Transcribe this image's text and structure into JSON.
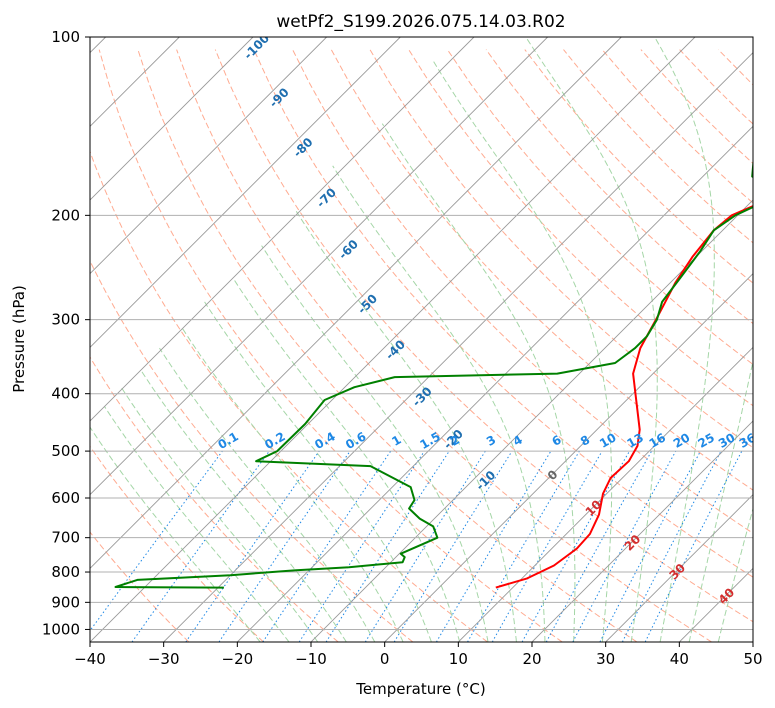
{
  "chart_data": {
    "type": "line",
    "title": "wetPf2_S199.2026.075.14.03.R02",
    "xlabel": "Temperature (°C)",
    "ylabel": "Pressure (hPa)",
    "xlim": [
      -40,
      50
    ],
    "ylim": [
      1050,
      100
    ],
    "x_ticks": [
      -40,
      -30,
      -20,
      -10,
      0,
      10,
      20,
      30,
      40,
      50
    ],
    "x_tick_labels": [
      "−40",
      "−30",
      "−20",
      "−10",
      "0",
      "10",
      "20",
      "30",
      "40",
      "50"
    ],
    "y_ticks": [
      100,
      200,
      300,
      400,
      500,
      600,
      700,
      800,
      900,
      1000
    ],
    "y_tick_labels": [
      "100",
      "200",
      "300",
      "400",
      "500",
      "600",
      "700",
      "800",
      "900",
      "1000"
    ],
    "grid": true,
    "colors": {
      "temperature": "#ff0000",
      "dewpoint": "#008000",
      "isotherm": "#999999",
      "dry_adiabat": "#ffab91",
      "moist_adiabat": "#a5d6a7",
      "mixing_ratio": "#1e88e5",
      "skewt_label": "#1f6fb0",
      "moist_label": "#d32f2f"
    },
    "series": [
      {
        "name": "Temperature",
        "color": "#ff0000",
        "points": [
          [
            7.7,
            850
          ],
          [
            10.7,
            820
          ],
          [
            12.6,
            780
          ],
          [
            13.4,
            730
          ],
          [
            13.2,
            690
          ],
          [
            11.8,
            640
          ],
          [
            9.5,
            590
          ],
          [
            8.4,
            555
          ],
          [
            8.6,
            520
          ],
          [
            7.7,
            490
          ],
          [
            5.8,
            460
          ],
          [
            1.3,
            410
          ],
          [
            -2.7,
            370
          ],
          [
            -5.2,
            335
          ],
          [
            -7.2,
            295
          ],
          [
            -9.3,
            260
          ],
          [
            -10.5,
            235
          ],
          [
            -11.2,
            212
          ],
          [
            -10.8,
            200
          ],
          [
            -8.7,
            191
          ],
          [
            -3.5,
            180
          ],
          [
            0.2,
            172
          ],
          [
            2.8,
            160
          ],
          [
            5.3,
            150
          ],
          [
            6.6,
            140
          ],
          [
            8.0,
            130
          ],
          [
            9.4,
            121
          ],
          [
            10.4,
            114
          ],
          [
            11.9,
            107
          ],
          [
            13.4,
            100
          ]
        ]
      },
      {
        "name": "Dewpoint",
        "color": "#008000",
        "points": [
          [
            -29.2,
            850
          ],
          [
            -44,
            848
          ],
          [
            -42,
            825
          ],
          [
            -30,
            810
          ],
          [
            -22,
            795
          ],
          [
            -15.0,
            785
          ],
          [
            -8.4,
            770
          ],
          [
            -8.8,
            755
          ],
          [
            -9.8,
            745
          ],
          [
            -7.0,
            700
          ],
          [
            -9.1,
            670
          ],
          [
            -12.0,
            650
          ],
          [
            -14.8,
            625
          ],
          [
            -15.2,
            605
          ],
          [
            -17.5,
            575
          ],
          [
            -25.8,
            530
          ],
          [
            -42,
            520
          ],
          [
            -40.5,
            500
          ],
          [
            -40.4,
            450
          ],
          [
            -41.0,
            410
          ],
          [
            -38.7,
            390
          ],
          [
            -34.6,
            375
          ],
          [
            -13.0,
            370
          ],
          [
            -6.6,
            355
          ],
          [
            -5.9,
            335
          ],
          [
            -5.9,
            320
          ],
          [
            -6.8,
            300
          ],
          [
            -8.5,
            280
          ],
          [
            -9.3,
            255
          ],
          [
            -10.2,
            230
          ],
          [
            -11.2,
            212
          ],
          [
            -10.3,
            200
          ],
          [
            -8.5,
            191
          ],
          [
            -6.9,
            184
          ],
          [
            -8.9,
            180
          ],
          [
            -13.3,
            172
          ],
          [
            -15.6,
            160
          ],
          [
            -14.1,
            150
          ],
          [
            -11.7,
            140
          ],
          [
            -8.1,
            130
          ],
          [
            -3.2,
            120
          ],
          [
            -0.4,
            111
          ],
          [
            0.7,
            105
          ],
          [
            1.2,
            100
          ]
        ]
      }
    ],
    "skew_t_labels": [
      "-100",
      "-90",
      "-80",
      "-70",
      "-60",
      "-50",
      "-40",
      "-30",
      "-20",
      "-10"
    ],
    "moist_adiabat_labels": [
      "0",
      "10",
      "20",
      "30",
      "40"
    ],
    "mixing_ratio_labels": [
      "0.1",
      "0.2",
      "0.4",
      "0.6",
      "1",
      "1.5",
      "2",
      "3",
      "4",
      "6",
      "8",
      "10",
      "13",
      "16",
      "20",
      "25",
      "30",
      "36"
    ]
  }
}
